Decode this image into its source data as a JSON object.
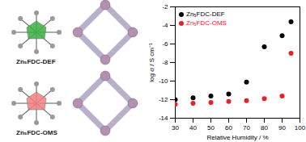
{
  "chart_data": {
    "type": "scatter",
    "x_label": "Relative Humidity / %",
    "y_label": "log σ / S cm⁻¹",
    "x": [
      30,
      40,
      50,
      60,
      70,
      80,
      90,
      95
    ],
    "series": [
      {
        "name": "Zn₅FDC-DEF",
        "color": "#000000",
        "marker": "circle",
        "values": [
          -12.0,
          -11.8,
          -11.6,
          -11.4,
          -10.1,
          -6.3,
          -5.1,
          -3.6
        ]
      },
      {
        "name": "Zn₅FDC-OMS",
        "color": "#e8202a",
        "marker": "circle",
        "values": [
          -12.5,
          -12.4,
          -12.3,
          -12.2,
          -12.1,
          -11.9,
          -11.6,
          -7.0
        ]
      }
    ],
    "xlim": [
      30,
      100
    ],
    "xticks": [
      30,
      40,
      50,
      60,
      70,
      80,
      90,
      100
    ],
    "ylim": [
      -14,
      -2
    ],
    "yticks": [
      -14,
      -12,
      -10,
      -8,
      -6,
      -4,
      -2
    ],
    "legend": "top-left",
    "grid": false
  },
  "images": [
    {
      "label": "Zn₅FDC-DEF"
    },
    {
      "label": "Zn₅FDC-OMS"
    }
  ]
}
